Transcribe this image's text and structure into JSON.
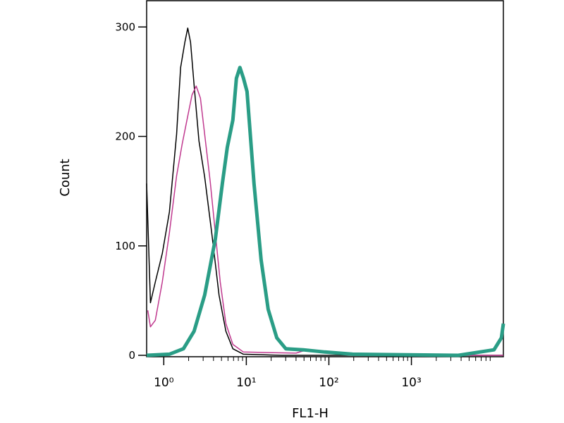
{
  "chart_data": {
    "type": "line",
    "xlabel": "FL1-H",
    "ylabel": "Count",
    "xscale": "log",
    "xlim": [
      0.62,
      13000
    ],
    "ylim": [
      0,
      324
    ],
    "xticks": [
      {
        "value": 1,
        "label": "10⁰"
      },
      {
        "value": 10,
        "label": "10¹"
      },
      {
        "value": 100,
        "label": "10²"
      },
      {
        "value": 1000,
        "label": "10³"
      }
    ],
    "xminorticks": [
      2,
      3,
      4,
      5,
      6,
      7,
      8,
      9,
      20,
      30,
      40,
      50,
      60,
      70,
      80,
      90,
      200,
      300,
      400,
      500,
      600,
      700,
      800,
      900,
      2000,
      3000,
      4000,
      5000,
      6000,
      7000,
      8000,
      9000
    ],
    "yticks": [
      0,
      100,
      200,
      300
    ],
    "series": [
      {
        "color": "#000000",
        "width": 1.5,
        "x": [
          0.62,
          0.69,
          0.79,
          0.96,
          1.17,
          1.43,
          1.6,
          1.8,
          1.95,
          2.11,
          2.33,
          2.67,
          3.13,
          3.81,
          4.67,
          5.65,
          6.87,
          9.2,
          27,
          13000
        ],
        "values": [
          157,
          48,
          67,
          93,
          131,
          202,
          263,
          286,
          299,
          286,
          247,
          196,
          163,
          112,
          55,
          22,
          6,
          1,
          0,
          0
        ]
      },
      {
        "color": "#c0398f",
        "width": 1.5,
        "x": [
          0.64,
          0.69,
          0.79,
          0.96,
          1.17,
          1.43,
          1.67,
          1.91,
          2.2,
          2.47,
          2.78,
          3.13,
          3.66,
          4.21,
          4.83,
          5.65,
          6.87,
          9.2,
          40,
          54,
          73,
          194,
          1400,
          13000
        ],
        "values": [
          41,
          26,
          32,
          67,
          112,
          164,
          193,
          215,
          238,
          246,
          235,
          202,
          158,
          112,
          67,
          29,
          10,
          3,
          2,
          5,
          4,
          1,
          0,
          0
        ]
      },
      {
        "color": "#2a9d86",
        "width": 5,
        "x": [
          0.62,
          1.17,
          1.73,
          2.33,
          3.13,
          4.21,
          5.12,
          5.88,
          6.87,
          7.58,
          8.37,
          9.24,
          10.2,
          12.4,
          15.1,
          18.4,
          23.4,
          30.1,
          49,
          89,
          194,
          3700,
          10000,
          12300,
          13000
        ],
        "values": [
          0,
          1,
          6,
          22,
          55,
          106,
          157,
          190,
          215,
          253,
          263,
          253,
          241,
          157,
          87,
          42,
          16,
          6,
          5,
          3,
          1,
          0,
          5,
          16,
          29
        ]
      }
    ]
  }
}
